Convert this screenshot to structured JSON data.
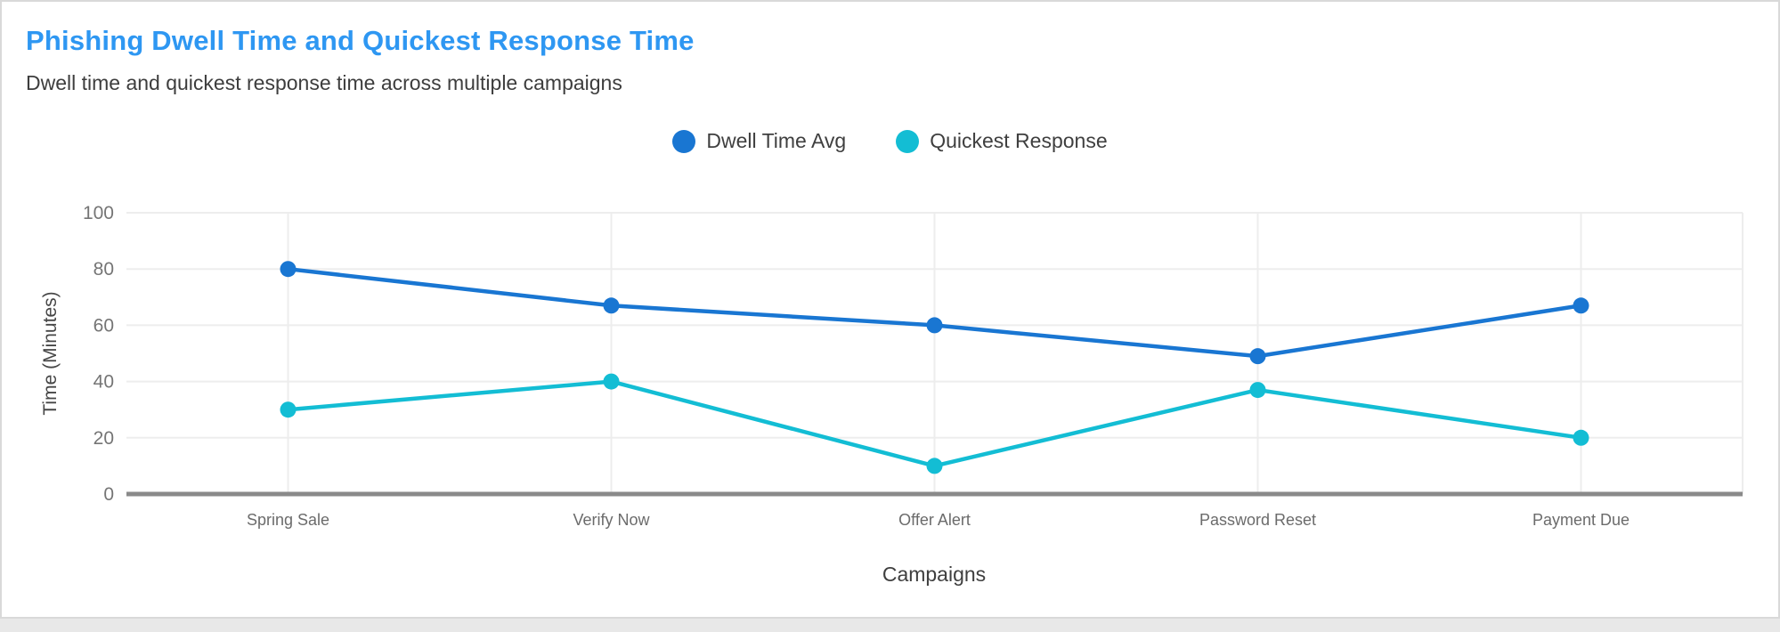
{
  "header": {
    "title": "Phishing Dwell Time and Quickest Response Time",
    "subtitle": "Dwell time and quickest response time across multiple campaigns"
  },
  "colors": {
    "title_accent": "#2e97f2",
    "dwell_series": "#1976d2",
    "quickest_series": "#13bdd4",
    "gridline": "#ededed",
    "zero_axis": "#8a8a8a",
    "tick_label": "#757575",
    "x_tick_label": "#6b6b6b"
  },
  "chart_data": {
    "type": "line",
    "title": "Phishing Dwell Time and Quickest Response Time",
    "subtitle": "Dwell time and quickest response time across multiple campaigns",
    "categories": [
      "Spring Sale",
      "Verify Now",
      "Offer Alert",
      "Password Reset",
      "Payment Due"
    ],
    "series": [
      {
        "name": "Dwell Time Avg",
        "color": "#1976d2",
        "values": [
          80,
          67,
          60,
          49,
          67
        ]
      },
      {
        "name": "Quickest Response",
        "color": "#13bdd4",
        "values": [
          30,
          40,
          10,
          37,
          20
        ]
      }
    ],
    "xlabel": "Campaigns",
    "ylabel": "Time (Minutes)",
    "ylim": [
      0,
      100
    ],
    "yticks": [
      0,
      20,
      40,
      60,
      80,
      100
    ],
    "grid": true,
    "legend_position": "top-center"
  }
}
